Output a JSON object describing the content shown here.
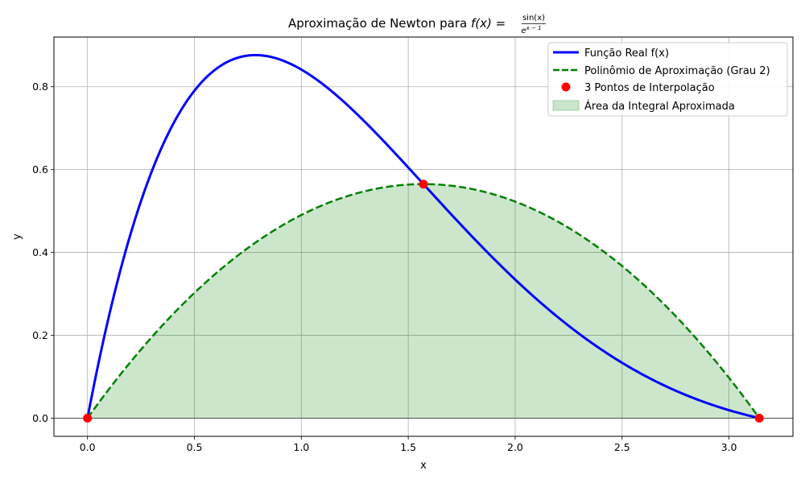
{
  "chart_data": {
    "type": "line",
    "title": {
      "prefix": "Aproximação de Newton para ",
      "func_lhs": "f(x) = ",
      "numerator": "sin(x)",
      "denominator_base": "e",
      "denominator_exp": "x − 1"
    },
    "xlabel": "x",
    "ylabel": "y",
    "xlim": [
      -0.157,
      3.299
    ],
    "ylim": [
      -0.044,
      0.92
    ],
    "x_ticks": [
      0.0,
      0.5,
      1.0,
      1.5,
      2.0,
      2.5,
      3.0
    ],
    "x_tick_labels": [
      "0.0",
      "0.5",
      "1.0",
      "1.5",
      "2.0",
      "2.5",
      "3.0"
    ],
    "y_ticks": [
      0.0,
      0.2,
      0.4,
      0.6,
      0.8
    ],
    "y_tick_labels": [
      "0.0",
      "0.2",
      "0.4",
      "0.6",
      "0.8"
    ],
    "grid": true,
    "legend_position": "upper right",
    "series": [
      {
        "name": "Função Real f(x)",
        "kind": "function",
        "expression": "sin(x)/e^(x-1)",
        "domain": [
          0,
          3.14159
        ],
        "color": "#0000ff",
        "style": "solid"
      },
      {
        "name": "Polinômio de Aproximação (Grau 2)",
        "kind": "quadratic-interpolant",
        "through": [
          [
            0,
            0
          ],
          [
            1.5708,
            0.5649
          ],
          [
            3.14159,
            0
          ]
        ],
        "color": "#008000",
        "style": "dashed"
      },
      {
        "name": "3 Pontos de Interpolação",
        "kind": "points",
        "x": [
          0.0,
          1.5708,
          3.14159
        ],
        "y": [
          0.0,
          0.5649,
          0.0
        ],
        "color": "#ff0000"
      },
      {
        "name": "Área da Integral Aproximada",
        "kind": "area-under-polynomial",
        "color": "#008000",
        "opacity": 0.2
      }
    ]
  }
}
